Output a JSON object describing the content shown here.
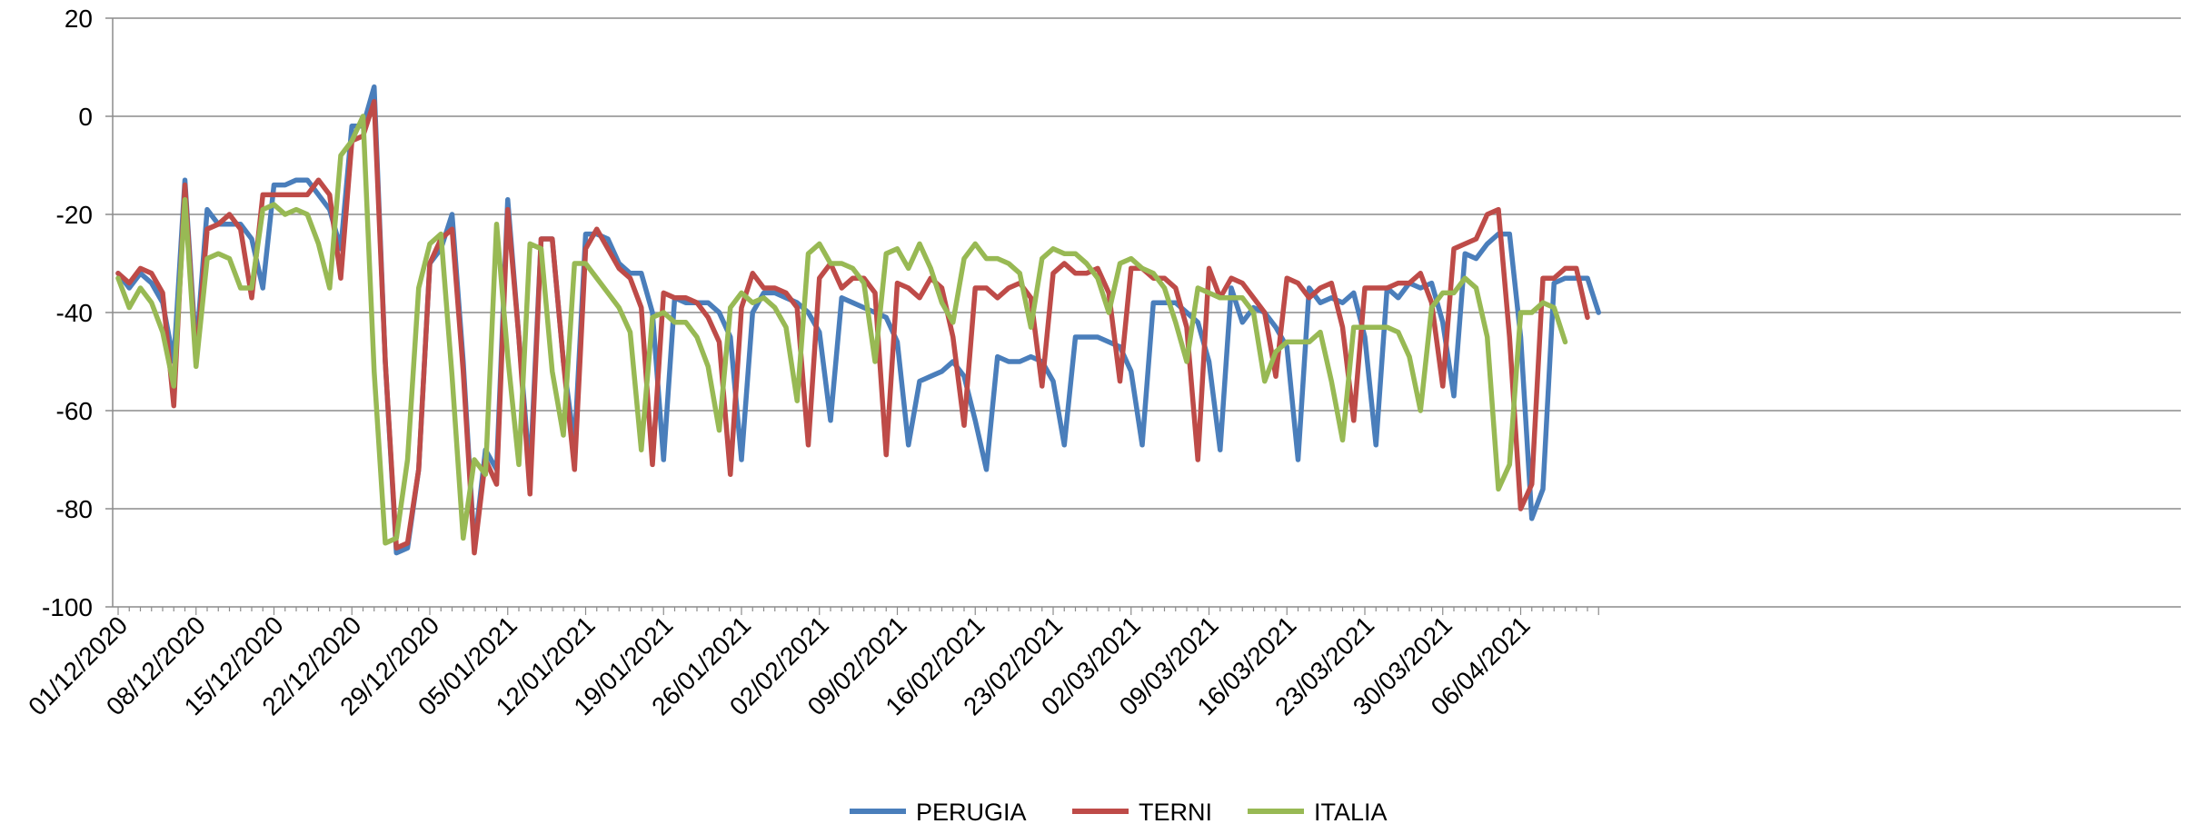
{
  "chart_data": {
    "type": "line",
    "title": "",
    "xlabel": "",
    "ylabel": "",
    "ylim": [
      -100,
      20
    ],
    "yticks": [
      20,
      0,
      -20,
      -40,
      -60,
      -80,
      -100
    ],
    "grid": "horizontal",
    "legend_position": "bottom",
    "start_date": "2020-12-01",
    "x_tick_labels": [
      "01/12/2020",
      "08/12/2020",
      "15/12/2020",
      "22/12/2020",
      "29/12/2020",
      "05/01/2021",
      "12/01/2021",
      "19/01/2021",
      "26/01/2021",
      "02/02/2021",
      "09/02/2021",
      "16/02/2021",
      "23/02/2021",
      "02/03/2021",
      "09/03/2021",
      "16/03/2021",
      "23/03/2021",
      "30/03/2021",
      "06/04/2021"
    ],
    "series": [
      {
        "name": "PERUGIA",
        "color": "#4a7ebb",
        "values": [
          -32,
          -35,
          -32,
          -34,
          -38,
          -50,
          -13,
          -48,
          -19,
          -22,
          -22,
          -22,
          -25,
          -35,
          -14,
          -14,
          -13,
          -13,
          -16,
          -19,
          -27,
          -2,
          -2,
          6,
          -50,
          -89,
          -88,
          -72,
          -30,
          -27,
          -20,
          -50,
          -88,
          -68,
          -72,
          -17,
          -45,
          -73,
          -25,
          -25,
          -50,
          -67,
          -24,
          -24,
          -25,
          -30,
          -32,
          -32,
          -40,
          -70,
          -37,
          -38,
          -38,
          -38,
          -40,
          -45,
          -70,
          -40,
          -36,
          -36,
          -37,
          -38,
          -40,
          -44,
          -62,
          -37,
          -38,
          -39,
          -40,
          -41,
          -46,
          -67,
          -54,
          -53,
          -52,
          -50,
          -53,
          -62,
          -72,
          -49,
          -50,
          -50,
          -49,
          -50,
          -54,
          -67,
          -45,
          -45,
          -45,
          -46,
          -47,
          -52,
          -67,
          -38,
          -38,
          -38,
          -40,
          -42,
          -50,
          -68,
          -35,
          -42,
          -39,
          -40,
          -43,
          -47,
          -70,
          -35,
          -38,
          -37,
          -38,
          -36,
          -45,
          -67,
          -35,
          -37,
          -34,
          -35,
          -34,
          -42,
          -57,
          -28,
          -29,
          -26,
          -24,
          -24,
          -45,
          -82,
          -76,
          -34,
          -33,
          -33,
          -33,
          -40
        ]
      },
      {
        "name": "TERNI",
        "color": "#be4b48",
        "values": [
          -32,
          -34,
          -31,
          -32,
          -36,
          -59,
          -14,
          -50,
          -23,
          -22,
          -20,
          -23,
          -37,
          -16,
          -16,
          -16,
          -16,
          -16,
          -13,
          -16,
          -33,
          -5,
          -4,
          3,
          -50,
          -88,
          -87,
          -72,
          -30,
          -25,
          -23,
          -52,
          -89,
          -70,
          -75,
          -19,
          -45,
          -77,
          -25,
          -25,
          -50,
          -72,
          -27,
          -23,
          -27,
          -31,
          -33,
          -39,
          -71,
          -36,
          -37,
          -37,
          -38,
          -41,
          -46,
          -73,
          -39,
          -32,
          -35,
          -35,
          -36,
          -39,
          -67,
          -33,
          -30,
          -35,
          -33,
          -33,
          -36,
          -69,
          -34,
          -35,
          -37,
          -33,
          -35,
          -45,
          -63,
          -35,
          -35,
          -37,
          -35,
          -34,
          -37,
          -55,
          -32,
          -30,
          -32,
          -32,
          -31,
          -36,
          -54,
          -31,
          -31,
          -33,
          -33,
          -35,
          -43,
          -70,
          -31,
          -37,
          -33,
          -34,
          -37,
          -40,
          -53,
          -33,
          -34,
          -37,
          -35,
          -34,
          -43,
          -62,
          -35,
          -35,
          -35,
          -34,
          -34,
          -32,
          -38,
          -55,
          -27,
          -26,
          -25,
          -20,
          -19,
          -45,
          -80,
          -75,
          -33,
          -33,
          -31,
          -31,
          -41
        ]
      },
      {
        "name": "ITALIA",
        "color": "#98b954",
        "values": [
          -33,
          -39,
          -35,
          -38,
          -44,
          -55,
          -17,
          -51,
          -29,
          -28,
          -29,
          -35,
          -35,
          -19,
          -18,
          -20,
          -19,
          -20,
          -26,
          -35,
          -8,
          -5,
          0,
          -52,
          -87,
          -86,
          -70,
          -35,
          -26,
          -24,
          -53,
          -86,
          -70,
          -73,
          -22,
          -49,
          -71,
          -26,
          -27,
          -52,
          -65,
          -30,
          -30,
          -33,
          -36,
          -39,
          -44,
          -68,
          -41,
          -40,
          -42,
          -42,
          -45,
          -51,
          -64,
          -39,
          -36,
          -38,
          -37,
          -39,
          -43,
          -58,
          -28,
          -26,
          -30,
          -30,
          -31,
          -34,
          -50,
          -28,
          -27,
          -31,
          -26,
          -31,
          -38,
          -42,
          -29,
          -26,
          -29,
          -29,
          -30,
          -32,
          -43,
          -29,
          -27,
          -28,
          -28,
          -30,
          -33,
          -40,
          -30,
          -29,
          -31,
          -32,
          -35,
          -42,
          -50,
          -35,
          -36,
          -37,
          -37,
          -37,
          -40,
          -54,
          -48,
          -46,
          -46,
          -46,
          -44,
          -54,
          -66,
          -43,
          -43,
          -43,
          -43,
          -44,
          -49,
          -60,
          -39,
          -36,
          -36,
          -33,
          -35,
          -45,
          -76,
          -71,
          -40,
          -40,
          -38,
          -39,
          -46
        ]
      }
    ]
  }
}
